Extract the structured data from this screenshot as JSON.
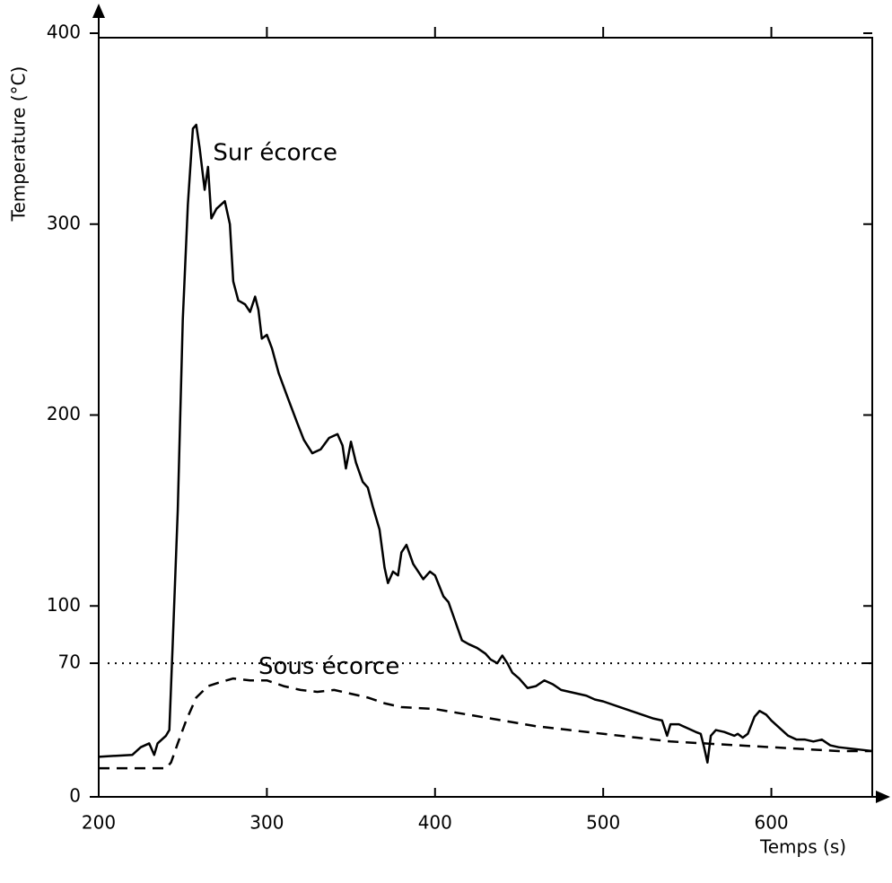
{
  "chart_data": {
    "type": "line",
    "y_label": "Temperature (°C)",
    "x_label": "Temps (s)",
    "xlim": [
      200,
      660
    ],
    "ylim": [
      0,
      400
    ],
    "xticks": [
      200,
      300,
      400,
      500,
      600
    ],
    "yticks": [
      0,
      70,
      100,
      200,
      300,
      400
    ],
    "hline": 70,
    "annotations": [
      {
        "text": "Sur écorce",
        "x": 268,
        "y": 337
      },
      {
        "text": "Sous écorce",
        "x": 295,
        "y": 68
      }
    ],
    "series": [
      {
        "name": "Sur écorce",
        "color": "#000000",
        "dash": "none",
        "x": [
          200,
          220,
          225,
          230,
          233,
          235,
          240,
          242,
          244,
          247,
          250,
          253,
          256,
          258,
          260,
          263,
          265,
          267,
          270,
          275,
          278,
          280,
          283,
          287,
          290,
          293,
          295,
          297,
          300,
          303,
          307,
          312,
          318,
          322,
          327,
          332,
          337,
          342,
          345,
          347,
          350,
          353,
          357,
          360,
          363,
          367,
          370,
          372,
          375,
          378,
          380,
          383,
          387,
          390,
          393,
          397,
          400,
          405,
          408,
          412,
          416,
          420,
          425,
          430,
          433,
          437,
          440,
          443,
          446,
          450,
          455,
          460,
          465,
          470,
          475,
          480,
          485,
          490,
          495,
          500,
          510,
          520,
          530,
          535,
          538,
          540,
          545,
          550,
          555,
          558,
          560,
          562,
          564,
          567,
          572,
          578,
          580,
          583,
          586,
          590,
          593,
          597,
          600,
          605,
          610,
          615,
          620,
          625,
          630,
          635,
          640,
          650,
          660
        ],
        "values": [
          21,
          22,
          26,
          28,
          22,
          28,
          32,
          35,
          80,
          150,
          250,
          310,
          350,
          352,
          340,
          318,
          330,
          303,
          308,
          312,
          300,
          270,
          260,
          258,
          254,
          262,
          255,
          240,
          242,
          235,
          222,
          210,
          196,
          187,
          180,
          182,
          188,
          190,
          184,
          172,
          186,
          175,
          165,
          162,
          152,
          140,
          120,
          112,
          118,
          116,
          128,
          132,
          122,
          118,
          114,
          118,
          116,
          105,
          102,
          92,
          82,
          80,
          78,
          75,
          72,
          70,
          74,
          70,
          65,
          62,
          57,
          58,
          61,
          59,
          56,
          55,
          54,
          53,
          51,
          50,
          47,
          44,
          41,
          40,
          32,
          38,
          38,
          36,
          34,
          33,
          26,
          18,
          32,
          35,
          34,
          32,
          33,
          31,
          33,
          42,
          45,
          43,
          40,
          36,
          32,
          30,
          30,
          29,
          30,
          27,
          26,
          25,
          24
        ]
      },
      {
        "name": "Sous écorce",
        "color": "#000000",
        "dash": "12 8",
        "x": [
          200,
          240,
          243,
          247,
          252,
          258,
          265,
          272,
          280,
          290,
          300,
          310,
          320,
          330,
          340,
          350,
          360,
          370,
          380,
          400,
          420,
          440,
          460,
          480,
          500,
          520,
          540,
          560,
          580,
          600,
          620,
          640,
          660
        ],
        "values": [
          15,
          15,
          18,
          28,
          40,
          52,
          58,
          60,
          62,
          61,
          61,
          58,
          56,
          55,
          56,
          54,
          52,
          49,
          47,
          46,
          43,
          40,
          37,
          35,
          33,
          31,
          29,
          28,
          27,
          26,
          25,
          24,
          24
        ]
      }
    ]
  }
}
